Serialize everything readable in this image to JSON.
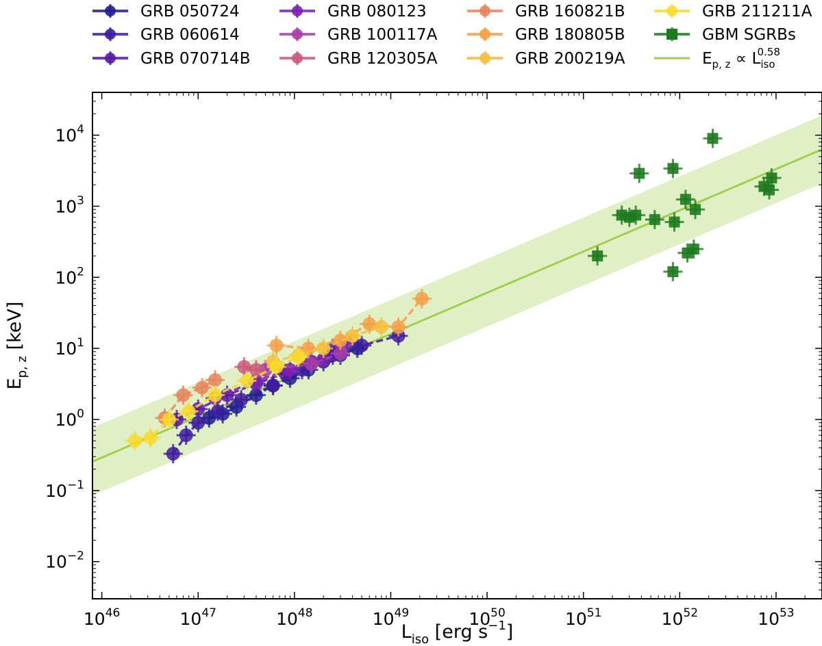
{
  "chart_data": {
    "type": "scatter",
    "x_scale": "log",
    "y_scale": "log",
    "xlim": [
      8e+45,
      3e+53
    ],
    "ylim": [
      0.003,
      40000
    ],
    "x_ticks": [
      {
        "value": 1e+46,
        "base": "10",
        "exp": "46"
      },
      {
        "value": 1e+47,
        "base": "10",
        "exp": "47"
      },
      {
        "value": 1e+48,
        "base": "10",
        "exp": "48"
      },
      {
        "value": 1e+49,
        "base": "10",
        "exp": "49"
      },
      {
        "value": 1e+50,
        "base": "10",
        "exp": "50"
      },
      {
        "value": 1e+51,
        "base": "10",
        "exp": "51"
      },
      {
        "value": 1e+52,
        "base": "10",
        "exp": "52"
      },
      {
        "value": 1e+53,
        "base": "10",
        "exp": "53"
      }
    ],
    "y_ticks": [
      {
        "value": 0.01,
        "base": "10",
        "exp": "−2"
      },
      {
        "value": 0.1,
        "base": "10",
        "exp": "−1"
      },
      {
        "value": 1,
        "base": "10",
        "exp": "0"
      },
      {
        "value": 10,
        "base": "10",
        "exp": "1"
      },
      {
        "value": 100,
        "base": "10",
        "exp": "2"
      },
      {
        "value": 1000,
        "base": "10",
        "exp": "3"
      },
      {
        "value": 10000,
        "base": "10",
        "exp": "4"
      }
    ],
    "xlabel": {
      "main": "L",
      "sub": "iso",
      "rest": " [erg s",
      "sup": "−1",
      "end": "]"
    },
    "ylabel": {
      "main": "E",
      "sub": "p, z",
      "rest": " [keV]"
    },
    "fit": {
      "label_main": "E",
      "label_sub": "p, z",
      "label_mid": " ∝ L",
      "label_sub2": "iso",
      "label_sup": "0.58",
      "slope": 0.58,
      "x_ref": 1e+48,
      "y_ref": 4.2,
      "band_factor": 3.0,
      "color": "#a0cf4a"
    },
    "series": [
      {
        "name": "GRB 050724",
        "color": "#1f1f8f",
        "marker": "circle",
        "x": [
          1.3e+47,
          1.8e+47,
          2.5e+47,
          4e+47,
          6e+47,
          9e+47,
          1.4e+48,
          2e+48,
          3e+48,
          4.5e+48
        ],
        "y": [
          1.05,
          1.2,
          1.5,
          2.2,
          3.0,
          3.8,
          5.0,
          6.5,
          8.0,
          10.0
        ]
      },
      {
        "name": "GRB 060614",
        "color": "#3d1c9e",
        "marker": "circle",
        "x": [
          5.5e+46,
          7.5e+46,
          1e+47,
          1.6e+47,
          2.8e+47,
          6e+47,
          1.2e+48,
          2.5e+48,
          5e+48,
          1.2e+49
        ],
        "y": [
          0.33,
          0.6,
          0.9,
          1.3,
          1.9,
          3.0,
          5.0,
          8.0,
          11.0,
          15.0
        ]
      },
      {
        "name": "GRB 070714B",
        "color": "#5a17a8",
        "marker": "circle",
        "x": [
          6e+46,
          1e+47,
          2e+47,
          4e+47,
          8e+47,
          1.5e+48,
          2.5e+48
        ],
        "y": [
          1.0,
          1.4,
          2.2,
          3.2,
          4.5,
          6.5,
          10.0
        ]
      },
      {
        "name": "GRB 080123",
        "color": "#7b22b0",
        "marker": "circle",
        "x": [
          1.5e+47,
          4e+47,
          9e+47,
          2e+48,
          3.5e+48
        ],
        "y": [
          2.0,
          3.5,
          5.0,
          7.0,
          12.0
        ]
      },
      {
        "name": "GRB 100117A",
        "color": "#a83da8",
        "marker": "circle",
        "x": [
          5e+47,
          1.5e+48,
          3e+48
        ],
        "y": [
          5.0,
          6.0,
          8.5
        ]
      },
      {
        "name": "GRB 120305A",
        "color": "#cc5a7a",
        "marker": "circle",
        "x": [
          3e+47,
          4e+47
        ],
        "y": [
          5.5,
          5.0
        ]
      },
      {
        "name": "GRB 160821B",
        "color": "#e8855a",
        "marker": "circle",
        "x": [
          4.5e+46,
          7e+46,
          1.1e+47,
          1.5e+47
        ],
        "y": [
          1.05,
          2.2,
          2.8,
          3.6
        ]
      },
      {
        "name": "GRB 180805B",
        "color": "#f4a046",
        "marker": "circle",
        "x": [
          6.5e+47,
          1.4e+48,
          3e+48,
          6e+48,
          1.2e+49,
          2.1e+49
        ],
        "y": [
          11.0,
          10.0,
          13.0,
          22.0,
          20.0,
          50.0
        ]
      },
      {
        "name": "GRB 200219A",
        "color": "#f5be3c",
        "marker": "circle",
        "x": [
          6e+47,
          1.1e+48,
          2e+48,
          4e+48,
          8e+48
        ],
        "y": [
          6.5,
          8.0,
          10.0,
          15.0,
          20.0
        ]
      },
      {
        "name": "GRB 211211A",
        "color": "#f7db2e",
        "marker": "circle",
        "x": [
          2.2e+46,
          3.2e+46,
          5e+46,
          8e+46,
          1.5e+47,
          3.2e+47,
          6.5e+47,
          1.1e+48
        ],
        "y": [
          0.5,
          0.55,
          1.0,
          1.3,
          2.2,
          3.5,
          5.5,
          7.5
        ]
      },
      {
        "name": "GBM SGRBs",
        "color": "#1e7a1e",
        "marker": "square",
        "x": [
          1.4e+51,
          2.5e+51,
          3e+51,
          3.5e+51,
          3.8e+51,
          5.5e+51,
          8.5e+51,
          8.8e+51,
          8.5e+51,
          1.15e+52,
          1.2e+52,
          1.4e+52,
          1.45e+52,
          2.2e+52,
          7.5e+52,
          8.5e+52,
          9e+52
        ],
        "y": [
          200,
          750,
          700,
          750,
          2900,
          650,
          3400,
          600,
          120,
          1250,
          220,
          250,
          900,
          9000,
          1900,
          1700,
          2500
        ]
      }
    ]
  }
}
